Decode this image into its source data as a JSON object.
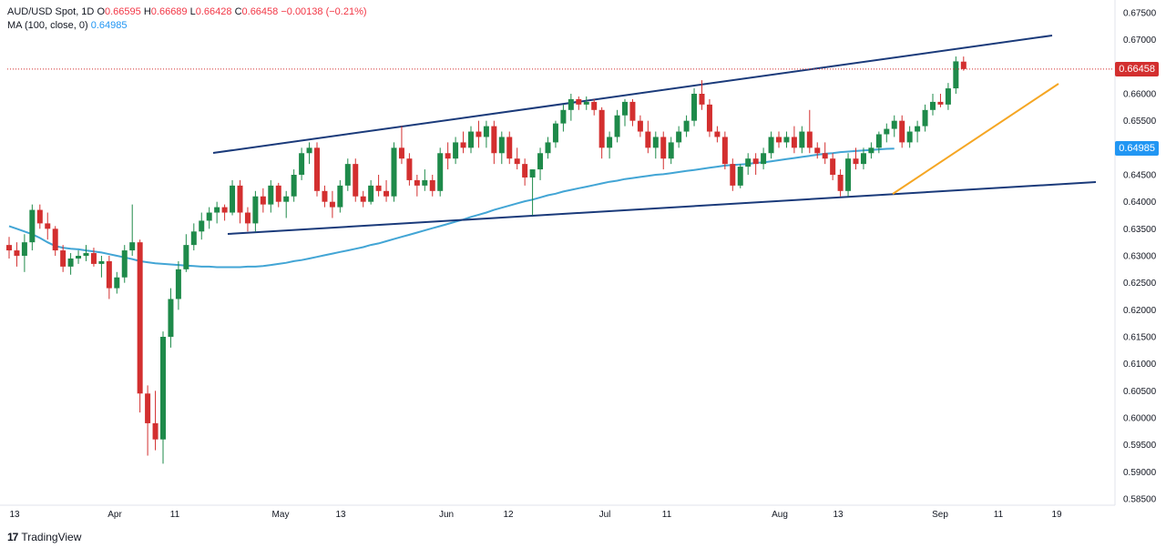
{
  "legend": {
    "symbol": "AUD/USD Spot, 1D",
    "o_label": "O",
    "o": "0.66595",
    "h_label": "H",
    "h": "0.66689",
    "l_label": "L",
    "l": "0.66428",
    "c_label": "C",
    "c": "0.66458",
    "change": "−0.00138 (−0.21%)",
    "ma_label": "MA (100, close, 0)",
    "ma_value": "0.64985"
  },
  "price_tags": {
    "last": "0.66458",
    "ma": "0.64985"
  },
  "brand": {
    "logo": "17",
    "name": "TradingView"
  },
  "colors": {
    "up": "#26a69a",
    "up_body": "#1e8a4a",
    "down": "#d32f2f",
    "ma": "#42a5d5",
    "trend": "#1a3a7a",
    "support": "#f5a623",
    "last_tag": "#d32f2f",
    "ma_tag": "#2196f3"
  },
  "chart_data": {
    "type": "candlestick",
    "title": "AUD/USD Spot, 1D",
    "y_axis": {
      "min": 0.585,
      "max": 0.675,
      "ticks": [
        "0.67500",
        "0.67000",
        "0.66500",
        "0.66000",
        "0.65500",
        "0.65000",
        "0.64500",
        "0.64000",
        "0.63500",
        "0.63000",
        "0.62500",
        "0.62000",
        "0.61500",
        "0.61000",
        "0.60500",
        "0.60000",
        "0.59500",
        "0.59000",
        "0.58500"
      ]
    },
    "x_axis": {
      "labels": [
        "13",
        "Apr",
        "11",
        "May",
        "13",
        "Jun",
        "12",
        "Jul",
        "11",
        "Aug",
        "13",
        "Sep",
        "11",
        "19"
      ]
    },
    "candles": [
      [
        0.632,
        0.6335,
        0.6295,
        0.631
      ],
      [
        0.631,
        0.6325,
        0.628,
        0.63
      ],
      [
        0.63,
        0.634,
        0.627,
        0.6325
      ],
      [
        0.6325,
        0.6395,
        0.631,
        0.6385
      ],
      [
        0.6385,
        0.6395,
        0.635,
        0.636
      ],
      [
        0.636,
        0.638,
        0.633,
        0.635
      ],
      [
        0.635,
        0.6355,
        0.63,
        0.631
      ],
      [
        0.631,
        0.632,
        0.627,
        0.628
      ],
      [
        0.628,
        0.6305,
        0.6265,
        0.6295
      ],
      [
        0.6295,
        0.631,
        0.6285,
        0.63
      ],
      [
        0.63,
        0.632,
        0.629,
        0.6305
      ],
      [
        0.6305,
        0.6315,
        0.628,
        0.6285
      ],
      [
        0.6285,
        0.63,
        0.626,
        0.629
      ],
      [
        0.629,
        0.63,
        0.622,
        0.624
      ],
      [
        0.624,
        0.627,
        0.623,
        0.626
      ],
      [
        0.626,
        0.632,
        0.625,
        0.631
      ],
      [
        0.631,
        0.6395,
        0.63,
        0.6325
      ],
      [
        0.6325,
        0.633,
        0.601,
        0.6045
      ],
      [
        0.6045,
        0.606,
        0.593,
        0.599
      ],
      [
        0.599,
        0.605,
        0.594,
        0.596
      ],
      [
        0.596,
        0.616,
        0.5915,
        0.615
      ],
      [
        0.615,
        0.624,
        0.613,
        0.622
      ],
      [
        0.622,
        0.629,
        0.62,
        0.6275
      ],
      [
        0.6275,
        0.634,
        0.627,
        0.632
      ],
      [
        0.632,
        0.636,
        0.631,
        0.6345
      ],
      [
        0.6345,
        0.638,
        0.633,
        0.6365
      ],
      [
        0.6365,
        0.639,
        0.635,
        0.638
      ],
      [
        0.638,
        0.64,
        0.636,
        0.639
      ],
      [
        0.639,
        0.6395,
        0.6365,
        0.638
      ],
      [
        0.638,
        0.644,
        0.6375,
        0.643
      ],
      [
        0.643,
        0.644,
        0.636,
        0.638
      ],
      [
        0.638,
        0.639,
        0.6345,
        0.636
      ],
      [
        0.636,
        0.642,
        0.6345,
        0.641
      ],
      [
        0.641,
        0.6425,
        0.638,
        0.6395
      ],
      [
        0.6395,
        0.644,
        0.638,
        0.643
      ],
      [
        0.643,
        0.6435,
        0.639,
        0.64
      ],
      [
        0.64,
        0.642,
        0.637,
        0.641
      ],
      [
        0.641,
        0.646,
        0.64,
        0.645
      ],
      [
        0.645,
        0.65,
        0.644,
        0.649
      ],
      [
        0.649,
        0.651,
        0.647,
        0.65
      ],
      [
        0.65,
        0.651,
        0.641,
        0.642
      ],
      [
        0.642,
        0.643,
        0.639,
        0.64
      ],
      [
        0.64,
        0.642,
        0.637,
        0.639
      ],
      [
        0.639,
        0.644,
        0.638,
        0.643
      ],
      [
        0.643,
        0.648,
        0.642,
        0.647
      ],
      [
        0.647,
        0.648,
        0.64,
        0.641
      ],
      [
        0.641,
        0.642,
        0.639,
        0.64
      ],
      [
        0.64,
        0.644,
        0.6395,
        0.643
      ],
      [
        0.643,
        0.645,
        0.641,
        0.642
      ],
      [
        0.642,
        0.644,
        0.64,
        0.641
      ],
      [
        0.641,
        0.651,
        0.64,
        0.65
      ],
      [
        0.65,
        0.654,
        0.647,
        0.648
      ],
      [
        0.648,
        0.649,
        0.643,
        0.644
      ],
      [
        0.644,
        0.645,
        0.641,
        0.643
      ],
      [
        0.643,
        0.646,
        0.642,
        0.644
      ],
      [
        0.644,
        0.645,
        0.641,
        0.642
      ],
      [
        0.642,
        0.65,
        0.641,
        0.649
      ],
      [
        0.649,
        0.651,
        0.646,
        0.648
      ],
      [
        0.648,
        0.652,
        0.647,
        0.651
      ],
      [
        0.651,
        0.653,
        0.649,
        0.65
      ],
      [
        0.65,
        0.654,
        0.649,
        0.653
      ],
      [
        0.653,
        0.655,
        0.65,
        0.652
      ],
      [
        0.652,
        0.655,
        0.65,
        0.654
      ],
      [
        0.654,
        0.655,
        0.647,
        0.649
      ],
      [
        0.649,
        0.653,
        0.647,
        0.652
      ],
      [
        0.652,
        0.653,
        0.647,
        0.648
      ],
      [
        0.648,
        0.65,
        0.646,
        0.647
      ],
      [
        0.647,
        0.648,
        0.643,
        0.6445
      ],
      [
        0.6445,
        0.646,
        0.6375,
        0.646
      ],
      [
        0.646,
        0.65,
        0.644,
        0.649
      ],
      [
        0.649,
        0.652,
        0.648,
        0.651
      ],
      [
        0.651,
        0.655,
        0.65,
        0.6545
      ],
      [
        0.6545,
        0.658,
        0.653,
        0.657
      ],
      [
        0.657,
        0.66,
        0.655,
        0.659
      ],
      [
        0.659,
        0.6595,
        0.657,
        0.658
      ],
      [
        0.658,
        0.6595,
        0.657,
        0.6585
      ],
      [
        0.6585,
        0.659,
        0.656,
        0.657
      ],
      [
        0.657,
        0.6575,
        0.648,
        0.65
      ],
      [
        0.65,
        0.653,
        0.648,
        0.652
      ],
      [
        0.652,
        0.657,
        0.651,
        0.656
      ],
      [
        0.656,
        0.659,
        0.654,
        0.6585
      ],
      [
        0.6585,
        0.659,
        0.654,
        0.655
      ],
      [
        0.655,
        0.656,
        0.652,
        0.653
      ],
      [
        0.653,
        0.655,
        0.649,
        0.65
      ],
      [
        0.65,
        0.653,
        0.648,
        0.652
      ],
      [
        0.652,
        0.653,
        0.646,
        0.648
      ],
      [
        0.648,
        0.652,
        0.647,
        0.651
      ],
      [
        0.651,
        0.654,
        0.65,
        0.653
      ],
      [
        0.653,
        0.656,
        0.652,
        0.655
      ],
      [
        0.655,
        0.661,
        0.654,
        0.66
      ],
      [
        0.66,
        0.6625,
        0.657,
        0.658
      ],
      [
        0.658,
        0.659,
        0.652,
        0.653
      ],
      [
        0.653,
        0.654,
        0.651,
        0.652
      ],
      [
        0.652,
        0.653,
        0.646,
        0.647
      ],
      [
        0.647,
        0.648,
        0.642,
        0.643
      ],
      [
        0.643,
        0.647,
        0.6425,
        0.6465
      ],
      [
        0.6465,
        0.649,
        0.645,
        0.648
      ],
      [
        0.648,
        0.649,
        0.645,
        0.647
      ],
      [
        0.647,
        0.65,
        0.646,
        0.649
      ],
      [
        0.649,
        0.653,
        0.648,
        0.652
      ],
      [
        0.652,
        0.653,
        0.65,
        0.651
      ],
      [
        0.651,
        0.653,
        0.65,
        0.652
      ],
      [
        0.652,
        0.654,
        0.649,
        0.65
      ],
      [
        0.65,
        0.654,
        0.649,
        0.653
      ],
      [
        0.653,
        0.657,
        0.649,
        0.65
      ],
      [
        0.65,
        0.651,
        0.648,
        0.649
      ],
      [
        0.649,
        0.651,
        0.647,
        0.648
      ],
      [
        0.648,
        0.649,
        0.644,
        0.645
      ],
      [
        0.645,
        0.646,
        0.641,
        0.642
      ],
      [
        0.642,
        0.649,
        0.641,
        0.648
      ],
      [
        0.648,
        0.65,
        0.646,
        0.647
      ],
      [
        0.647,
        0.65,
        0.646,
        0.649
      ],
      [
        0.649,
        0.651,
        0.648,
        0.65
      ],
      [
        0.65,
        0.653,
        0.649,
        0.6525
      ],
      [
        0.6525,
        0.6545,
        0.651,
        0.6535
      ],
      [
        0.6535,
        0.656,
        0.652,
        0.655
      ],
      [
        0.655,
        0.656,
        0.65,
        0.651
      ],
      [
        0.651,
        0.654,
        0.65,
        0.653
      ],
      [
        0.653,
        0.655,
        0.651,
        0.654
      ],
      [
        0.654,
        0.658,
        0.653,
        0.657
      ],
      [
        0.657,
        0.66,
        0.656,
        0.6585
      ],
      [
        0.6585,
        0.66,
        0.6575,
        0.658
      ],
      [
        0.658,
        0.662,
        0.657,
        0.661
      ],
      [
        0.661,
        0.6669,
        0.66,
        0.666
      ],
      [
        0.66595,
        0.66689,
        0.66428,
        0.66458
      ]
    ],
    "ma100": [
      0.6355,
      0.635,
      0.6345,
      0.634,
      0.6333,
      0.6325,
      0.6318,
      0.6315,
      0.6313,
      0.6312,
      0.631,
      0.6308,
      0.6306,
      0.6303,
      0.63,
      0.6297,
      0.6294,
      0.629,
      0.6288,
      0.6286,
      0.6285,
      0.6284,
      0.6283,
      0.6282,
      0.6281,
      0.628,
      0.628,
      0.6279,
      0.6279,
      0.6279,
      0.6279,
      0.628,
      0.628,
      0.6281,
      0.6283,
      0.6285,
      0.6287,
      0.629,
      0.6292,
      0.6295,
      0.6298,
      0.6301,
      0.6304,
      0.6307,
      0.631,
      0.6313,
      0.6316,
      0.632,
      0.6323,
      0.6327,
      0.6331,
      0.6335,
      0.6339,
      0.6343,
      0.6347,
      0.6351,
      0.6355,
      0.6359,
      0.6363,
      0.6367,
      0.6372,
      0.6376,
      0.638,
      0.6385,
      0.6389,
      0.6393,
      0.6397,
      0.6401,
      0.6404,
      0.6408,
      0.6412,
      0.6415,
      0.6419,
      0.6422,
      0.6425,
      0.6428,
      0.6431,
      0.6434,
      0.6437,
      0.6439,
      0.6442,
      0.6444,
      0.6446,
      0.6448,
      0.645,
      0.6451,
      0.6453,
      0.6455,
      0.6457,
      0.6459,
      0.6461,
      0.6463,
      0.6465,
      0.6467,
      0.6468,
      0.6469,
      0.647,
      0.6472,
      0.6473,
      0.6475,
      0.6477,
      0.6479,
      0.6481,
      0.6483,
      0.6485,
      0.6487,
      0.6489,
      0.649,
      0.6492,
      0.6493,
      0.6494,
      0.6495,
      0.6496,
      0.6497,
      0.6498,
      0.64985
    ],
    "last_price": 0.66458,
    "ma_last": 0.64985
  }
}
